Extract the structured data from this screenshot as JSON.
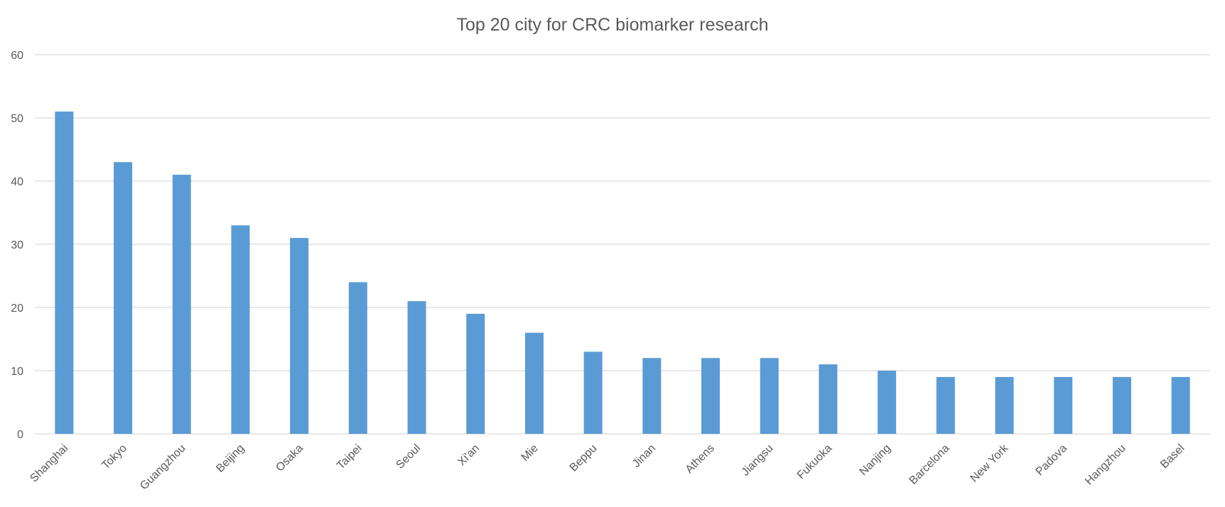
{
  "chart_data": {
    "type": "bar",
    "title": "Top 20 city for CRC biomarker research",
    "xlabel": "",
    "ylabel": "",
    "categories": [
      "Shanghai",
      "Tokyo",
      "Guangzhou",
      "Beijing",
      "Osaka",
      "Taipei",
      "Seoul",
      "Xi'an",
      "Mie",
      "Beppu",
      "Jinan",
      "Athens",
      "Jiangsu",
      "Fukuoka",
      "Nanjing",
      "Barcelona",
      "New York",
      "Padova",
      "Hangzhou",
      "Basel"
    ],
    "values": [
      51,
      43,
      41,
      33,
      31,
      24,
      21,
      19,
      16,
      13,
      12,
      12,
      12,
      11,
      10,
      9,
      9,
      9,
      9,
      9
    ],
    "ylim": [
      0,
      60
    ],
    "yticks": [
      0,
      10,
      20,
      30,
      40,
      50,
      60
    ],
    "grid": true,
    "legend": "none",
    "bar_color": "#5b9bd5",
    "grid_color": "#d9d9d9",
    "text_color": "#595959"
  }
}
